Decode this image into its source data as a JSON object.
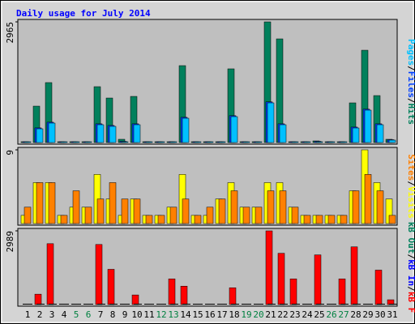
{
  "title": "Daily usage for July 2014",
  "label_separator": "/",
  "chart_data": [
    {
      "type": "bar",
      "ylim": [
        0,
        2965
      ],
      "yticks": [
        2965
      ],
      "series": [
        {
          "name": "Hits",
          "color": "#00805c",
          "values": [
            20,
            895,
            1473,
            20,
            20,
            20,
            1373,
            1094,
            80,
            1134,
            20,
            20,
            20,
            1890,
            20,
            20,
            20,
            1811,
            20,
            20,
            2965,
            2547,
            20,
            20,
            40,
            20,
            20,
            975,
            2268,
            1154,
            80
          ]
        },
        {
          "name": "Files",
          "color": "#0040ff",
          "values": [
            10,
            360,
            500,
            10,
            10,
            10,
            460,
            420,
            30,
            460,
            10,
            10,
            10,
            620,
            10,
            10,
            10,
            660,
            10,
            10,
            1000,
            460,
            10,
            10,
            30,
            10,
            10,
            380,
            820,
            460,
            70
          ]
        },
        {
          "name": "Pages",
          "color": "#00c0ff",
          "values": [
            10,
            338,
            478,
            10,
            10,
            10,
            438,
            398,
            20,
            438,
            10,
            10,
            10,
            597,
            10,
            10,
            10,
            637,
            10,
            10,
            975,
            438,
            10,
            10,
            20,
            10,
            10,
            358,
            796,
            438,
            60
          ]
        }
      ]
    },
    {
      "type": "bar",
      "ylim": [
        0,
        9
      ],
      "yticks": [
        9
      ],
      "series": [
        {
          "name": "Visits",
          "color": "#ffff00",
          "values": [
            1,
            5,
            5,
            1,
            2,
            2,
            6,
            3,
            1,
            3,
            1,
            1,
            2,
            6,
            1,
            1,
            3,
            5,
            2,
            2,
            5,
            5,
            2,
            1,
            1,
            1,
            1,
            4,
            9,
            5,
            3
          ]
        },
        {
          "name": "Sites",
          "color": "#ff8000",
          "values": [
            2,
            5,
            5,
            1,
            4,
            2,
            3,
            5,
            3,
            3,
            1,
            1,
            2,
            3,
            1,
            2,
            3,
            4,
            2,
            2,
            4,
            4,
            2,
            1,
            1,
            1,
            1,
            4,
            6,
            4,
            1
          ]
        }
      ]
    },
    {
      "type": "bar",
      "ylim": [
        0,
        2989
      ],
      "yticks": [
        2989
      ],
      "categories": [
        "1",
        "2",
        "3",
        "4",
        "5",
        "6",
        "7",
        "8",
        "9",
        "10",
        "11",
        "12",
        "13",
        "14",
        "15",
        "16",
        "17",
        "18",
        "19",
        "20",
        "21",
        "22",
        "23",
        "24",
        "25",
        "26",
        "27",
        "28",
        "29",
        "30",
        "31"
      ],
      "category_colors": [
        "#000000",
        "#000000",
        "#000000",
        "#000000",
        "#008040",
        "#008040",
        "#000000",
        "#000000",
        "#000000",
        "#000000",
        "#000000",
        "#008040",
        "#008040",
        "#000000",
        "#000000",
        "#000000",
        "#000000",
        "#000000",
        "#008040",
        "#008040",
        "#000000",
        "#000000",
        "#000000",
        "#000000",
        "#000000",
        "#008040",
        "#008040",
        "#000000",
        "#000000",
        "#000000",
        "#000000"
      ],
      "series": [
        {
          "name": "kB F",
          "color": "#ff0000",
          "values": [
            0,
            422,
            2469,
            0,
            0,
            0,
            2437,
            1430,
            0,
            390,
            0,
            0,
            1040,
            747,
            0,
            0,
            0,
            682,
            0,
            0,
            2989,
            2080,
            1040,
            0,
            2015,
            0,
            1040,
            2340,
            0,
            1397,
            195
          ]
        },
        {
          "name": "kB In",
          "color": "#0000ff",
          "values": [
            0,
            0,
            0,
            0,
            0,
            0,
            0,
            0,
            0,
            0,
            0,
            0,
            0,
            0,
            0,
            0,
            0,
            0,
            0,
            0,
            0,
            0,
            0,
            0,
            0,
            0,
            0,
            0,
            0,
            0,
            0
          ]
        },
        {
          "name": "kB Out",
          "color": "#00805c",
          "values": [
            0,
            0,
            0,
            0,
            0,
            0,
            0,
            0,
            0,
            0,
            0,
            0,
            0,
            0,
            0,
            0,
            0,
            0,
            0,
            0,
            0,
            0,
            0,
            0,
            0,
            0,
            0,
            0,
            0,
            0,
            0
          ]
        }
      ]
    }
  ]
}
